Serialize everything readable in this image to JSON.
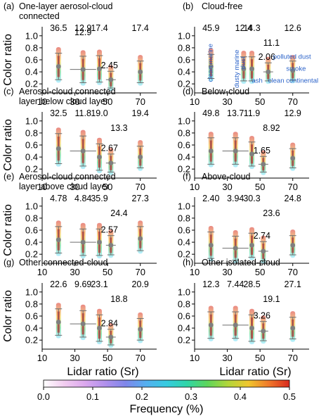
{
  "colors": {
    "point": "#7f7f7f",
    "errorbar": "#6e6e6e",
    "annotation": "#2a62c9"
  },
  "colormap_stops": [
    "#ffffff",
    "#f2cdf0",
    "#dca8ee",
    "#b190ec",
    "#7f86ea",
    "#55aff0",
    "#36cbe0",
    "#2fd6a7",
    "#5ed65a",
    "#b2d63a",
    "#f0c62d",
    "#f0782a",
    "#d8291e"
  ],
  "shared": {
    "xlabel": "Lidar ratio (Sr)",
    "ylabel": "Color ratio",
    "xticks": [
      10,
      30,
      50,
      70
    ],
    "yticks": [
      "0.2",
      "0.4",
      "0.6",
      "0.8",
      "1.0"
    ],
    "colorbar_label": "Frequency (%)",
    "colorbar_ticks": [
      "0.0",
      "0.1",
      "0.2",
      "0.3",
      "0.4",
      "0.5"
    ]
  },
  "chart_data": [
    {
      "type": "scatter",
      "panel": "(a)",
      "title_lines": [
        "One-layer aerosol-cloud",
        "connected"
      ],
      "xlim": [
        10,
        80
      ],
      "ylim": [
        0.05,
        1.15
      ],
      "x": [
        20,
        35,
        45,
        52,
        70
      ],
      "y": [
        0.49,
        0.44,
        0.45,
        0.27,
        0.4
      ],
      "yerr": [
        0.22,
        0.22,
        0.22,
        0.14,
        0.18
      ],
      "xerr": [
        0,
        8,
        0,
        3,
        0
      ],
      "labels": [
        "36.5",
        "12.9",
        "17.4",
        "2.45",
        "17.4"
      ],
      "extra_labels": [
        "12.9"
      ],
      "annotations": []
    },
    {
      "type": "scatter",
      "panel": "(b)",
      "title_lines": [
        "Cloud-free"
      ],
      "xlim": [
        10,
        80
      ],
      "ylim": [
        0.05,
        1.15
      ],
      "x": [
        20,
        40,
        45,
        55,
        70
      ],
      "y": [
        0.49,
        0.45,
        0.45,
        0.4,
        0.42
      ],
      "yerr": [
        0.2,
        0.2,
        0.2,
        0.15,
        0.16
      ],
      "xerr": [
        0,
        0,
        0,
        3,
        0
      ],
      "labels": [
        "45.9",
        "12.4",
        "14.3",
        "2.06",
        "12.6"
      ],
      "extra_labels": [
        "11.1"
      ],
      "annotations": [
        "clean marine",
        "dusty marine",
        "dust",
        "ash",
        "polluted dust",
        "smoke",
        "clean continental"
      ]
    },
    {
      "type": "scatter",
      "panel": "(c)",
      "title_lines": [
        "Aerosol-cloud connected",
        "layer below cloud layer"
      ],
      "xlim": [
        10,
        80
      ],
      "ylim": [
        0.05,
        1.15
      ],
      "x": [
        20,
        35,
        45,
        52,
        70
      ],
      "y": [
        0.54,
        0.5,
        0.4,
        0.3,
        0.4
      ],
      "yerr": [
        0.25,
        0.25,
        0.22,
        0.15,
        0.18
      ],
      "xerr": [
        0,
        8,
        0,
        3,
        0
      ],
      "labels": [
        "32.5",
        "11.8",
        "19.0",
        "2.67",
        "19.4"
      ],
      "extra_labels": [
        "13.3"
      ],
      "annotations": []
    },
    {
      "type": "scatter",
      "panel": "(d)",
      "title_lines": [
        "Below-cloud"
      ],
      "xlim": [
        10,
        80
      ],
      "ylim": [
        0.05,
        1.15
      ],
      "x": [
        20,
        35,
        45,
        52,
        70
      ],
      "y": [
        0.5,
        0.5,
        0.45,
        0.28,
        0.38
      ],
      "yerr": [
        0.22,
        0.22,
        0.2,
        0.13,
        0.16
      ],
      "xerr": [
        0,
        8,
        0,
        3,
        0
      ],
      "labels": [
        "49.8",
        "13.7",
        "11.9",
        "1.65",
        "12.9"
      ],
      "extra_labels": [
        "8.92"
      ],
      "annotations": []
    },
    {
      "type": "scatter",
      "panel": "(e)",
      "title_lines": [
        "Aerosol-cloud connected",
        "layer above cloud layer"
      ],
      "xlim": [
        10,
        80
      ],
      "ylim": [
        0.05,
        1.15
      ],
      "x": [
        20,
        35,
        45,
        52,
        70
      ],
      "y": [
        0.44,
        0.4,
        0.4,
        0.35,
        0.46
      ],
      "yerr": [
        0.22,
        0.22,
        0.22,
        0.16,
        0.2
      ],
      "xerr": [
        0,
        8,
        0,
        3,
        0
      ],
      "labels": [
        "4.78",
        "4.84",
        "35.9",
        "2.57",
        "27.3"
      ],
      "extra_labels": [
        "24.4"
      ],
      "annotations": []
    },
    {
      "type": "scatter",
      "panel": "(f)",
      "title_lines": [
        "Above-cloud"
      ],
      "xlim": [
        10,
        80
      ],
      "ylim": [
        0.05,
        1.15
      ],
      "x": [
        20,
        35,
        45,
        52,
        70
      ],
      "y": [
        0.35,
        0.3,
        0.35,
        0.25,
        0.35
      ],
      "yerr": [
        0.22,
        0.2,
        0.2,
        0.16,
        0.16
      ],
      "xerr": [
        0,
        8,
        0,
        3,
        0
      ],
      "labels": [
        "2.40",
        "3.94",
        "30.3",
        "2.74",
        "24.8"
      ],
      "extra_labels": [
        "23.6"
      ],
      "annotations": []
    },
    {
      "type": "scatter",
      "panel": "(g)",
      "title_lines": [
        "Other connected-cloud"
      ],
      "xlim": [
        10,
        80
      ],
      "ylim": [
        0.05,
        1.15
      ],
      "x": [
        20,
        35,
        45,
        52,
        70
      ],
      "y": [
        0.5,
        0.47,
        0.4,
        0.25,
        0.38
      ],
      "yerr": [
        0.22,
        0.22,
        0.22,
        0.13,
        0.18
      ],
      "xerr": [
        0,
        8,
        0,
        3,
        0
      ],
      "labels": [
        "22.6",
        "9.69",
        "23.1",
        "2.84",
        "20.9"
      ],
      "extra_labels": [
        "18.8"
      ],
      "annotations": []
    },
    {
      "type": "scatter",
      "panel": "(h)",
      "title_lines": [
        "Other isolated-cloud"
      ],
      "xlim": [
        10,
        80
      ],
      "ylim": [
        0.05,
        1.15
      ],
      "x": [
        20,
        35,
        45,
        52,
        70
      ],
      "y": [
        0.45,
        0.45,
        0.4,
        0.35,
        0.4
      ],
      "yerr": [
        0.22,
        0.22,
        0.22,
        0.16,
        0.18
      ],
      "xerr": [
        0,
        8,
        0,
        3,
        0
      ],
      "labels": [
        "12.3",
        "7.44",
        "28.5",
        "3.26",
        "27.1"
      ],
      "extra_labels": [
        "19.1"
      ],
      "annotations": []
    }
  ]
}
